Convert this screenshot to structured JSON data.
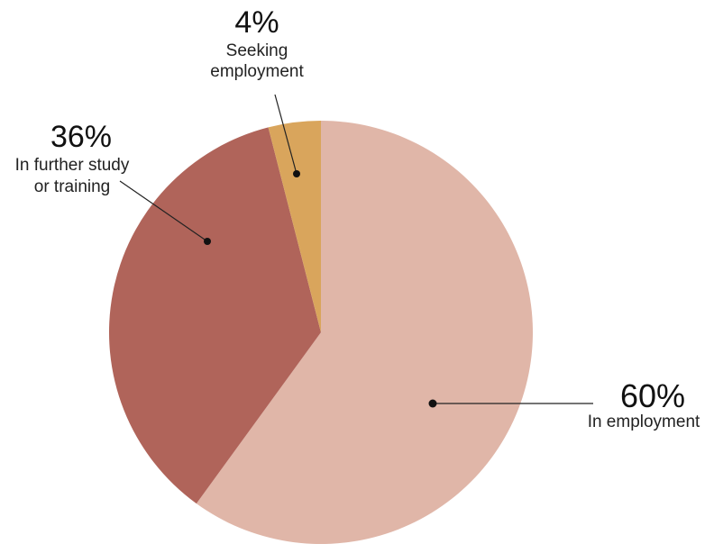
{
  "chart_data": {
    "type": "pie",
    "title": "",
    "slices": [
      {
        "label": "In employment",
        "value": 60,
        "value_label": "60%",
        "color": "#e0b6a8"
      },
      {
        "label": "In further study or training",
        "value": 36,
        "value_label": "36%",
        "color": "#b0645a"
      },
      {
        "label": "Seeking employment",
        "value": 4,
        "value_label": "4%",
        "color": "#d9a55c"
      }
    ],
    "label_lines": {
      "employment": [
        "In employment"
      ],
      "study": [
        "In further study",
        "or training"
      ],
      "seeking": [
        "Seeking",
        "employment"
      ]
    },
    "legend": "none"
  }
}
